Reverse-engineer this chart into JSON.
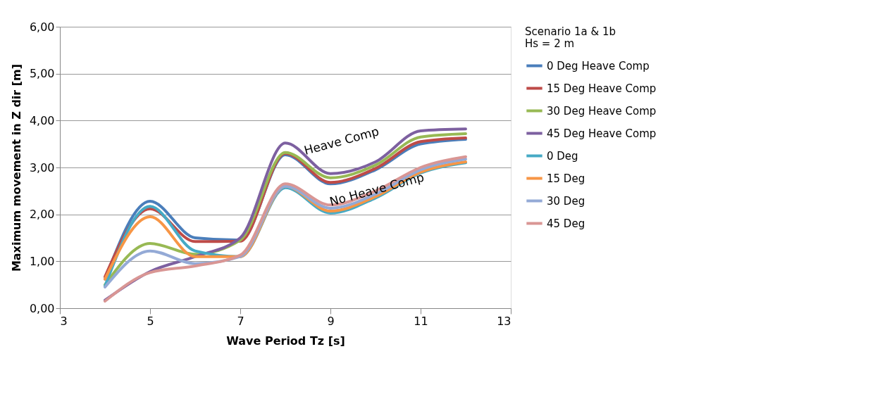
{
  "chart_data": {
    "type": "line",
    "xlabel": "Wave Period Tz [s]",
    "ylabel": "Maximum movement in Z dir [m]",
    "legend_title": "Scenario 1a & 1b\nHs = 2 m",
    "x": [
      4,
      5,
      6,
      7,
      8,
      9,
      10,
      11,
      12
    ],
    "series": [
      {
        "name": "0 Deg Heave Comp",
        "color": "#4a7ebb",
        "values": [
          0.62,
          2.28,
          1.5,
          1.45,
          3.27,
          2.65,
          2.95,
          3.5,
          3.6
        ]
      },
      {
        "name": "15 Deg Heave Comp",
        "color": "#be4b48",
        "values": [
          0.67,
          2.12,
          1.42,
          1.43,
          3.3,
          2.68,
          2.98,
          3.55,
          3.63
        ]
      },
      {
        "name": "30 Deg Heave Comp",
        "color": "#98b954",
        "values": [
          0.5,
          1.38,
          1.15,
          1.45,
          3.32,
          2.78,
          3.05,
          3.65,
          3.72
        ]
      },
      {
        "name": "45 Deg Heave Comp",
        "color": "#7d60a0",
        "values": [
          0.17,
          0.78,
          1.1,
          1.5,
          3.52,
          2.87,
          3.12,
          3.78,
          3.82
        ]
      },
      {
        "name": "0 Deg",
        "color": "#46aac5",
        "values": [
          0.47,
          2.17,
          1.22,
          1.1,
          2.57,
          2.03,
          2.35,
          2.88,
          3.1
        ]
      },
      {
        "name": "15 Deg",
        "color": "#f79646",
        "values": [
          0.62,
          1.95,
          1.1,
          1.1,
          2.6,
          2.07,
          2.38,
          2.9,
          3.12
        ]
      },
      {
        "name": "30 Deg",
        "color": "#94aad6",
        "values": [
          0.45,
          1.22,
          0.95,
          1.1,
          2.6,
          2.13,
          2.43,
          2.95,
          3.18
        ]
      },
      {
        "name": "45 Deg",
        "color": "#d99694",
        "values": [
          0.15,
          0.76,
          0.9,
          1.13,
          2.65,
          2.2,
          2.5,
          3.0,
          3.23
        ]
      }
    ],
    "xlim": [
      3,
      13
    ],
    "xticks": [
      3,
      5,
      7,
      9,
      11,
      13
    ],
    "ylim": [
      0,
      6
    ],
    "yticks": [
      {
        "value": 0,
        "label": "0,00"
      },
      {
        "value": 1,
        "label": "1,00"
      },
      {
        "value": 2,
        "label": "2,00"
      },
      {
        "value": 3,
        "label": "3,00"
      },
      {
        "value": 4,
        "label": "4,00"
      },
      {
        "value": 5,
        "label": "5,00"
      },
      {
        "value": 6,
        "label": "6,00"
      }
    ],
    "annotations": [
      "Heave Comp",
      "No Heave Comp"
    ],
    "grid": "y",
    "legend": "right",
    "marker": "none",
    "line_style": "solid"
  }
}
